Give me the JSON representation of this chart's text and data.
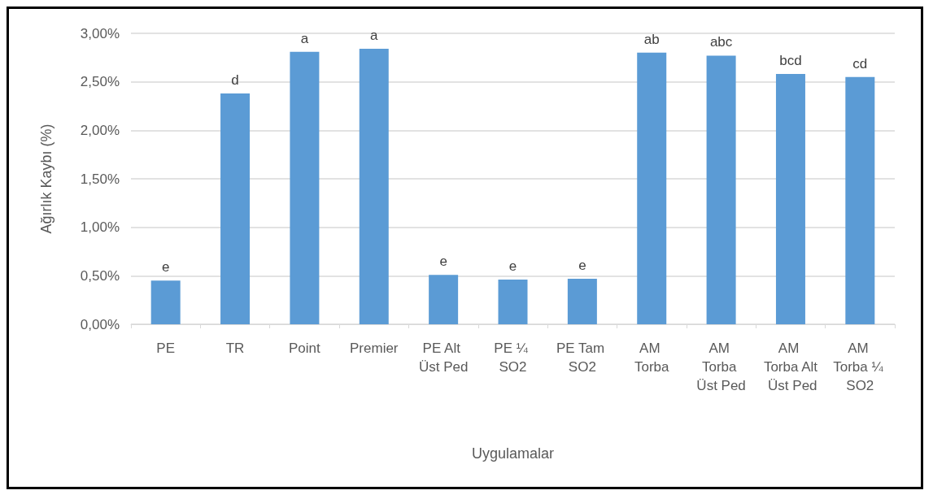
{
  "chart_data": {
    "type": "bar",
    "xlabel": "Uygulamalar",
    "ylabel": "Ağırlık Kaybı (%)",
    "categories": [
      "PE",
      "TR",
      "Point",
      "Premier",
      "PE Alt Üst Ped",
      "PE ¼ SO2",
      "PE Tam SO2",
      "AM Torba",
      "AM Torba Üst Ped",
      "AM Torba Alt Üst Ped",
      "AM Torba ¼ SO2"
    ],
    "values": [
      0.45,
      2.38,
      2.81,
      2.84,
      0.51,
      0.46,
      0.47,
      2.8,
      2.77,
      2.58,
      2.55
    ],
    "value_labels": [
      "e",
      "d",
      "a",
      "a",
      "e",
      "e",
      "e",
      "ab",
      "abc",
      "bcd",
      "cd"
    ],
    "color": "#5b9bd5",
    "ylim": [
      0,
      3
    ],
    "yticks": [
      {
        "value": 0,
        "label": "0,00%"
      },
      {
        "value": 0.5,
        "label": "0,50%"
      },
      {
        "value": 1,
        "label": "1,00%"
      },
      {
        "value": 1.5,
        "label": "1,50%"
      },
      {
        "value": 2,
        "label": "2,00%"
      },
      {
        "value": 2.5,
        "label": "2,50%"
      },
      {
        "value": 3,
        "label": "3,00%"
      }
    ],
    "grid": "y"
  }
}
